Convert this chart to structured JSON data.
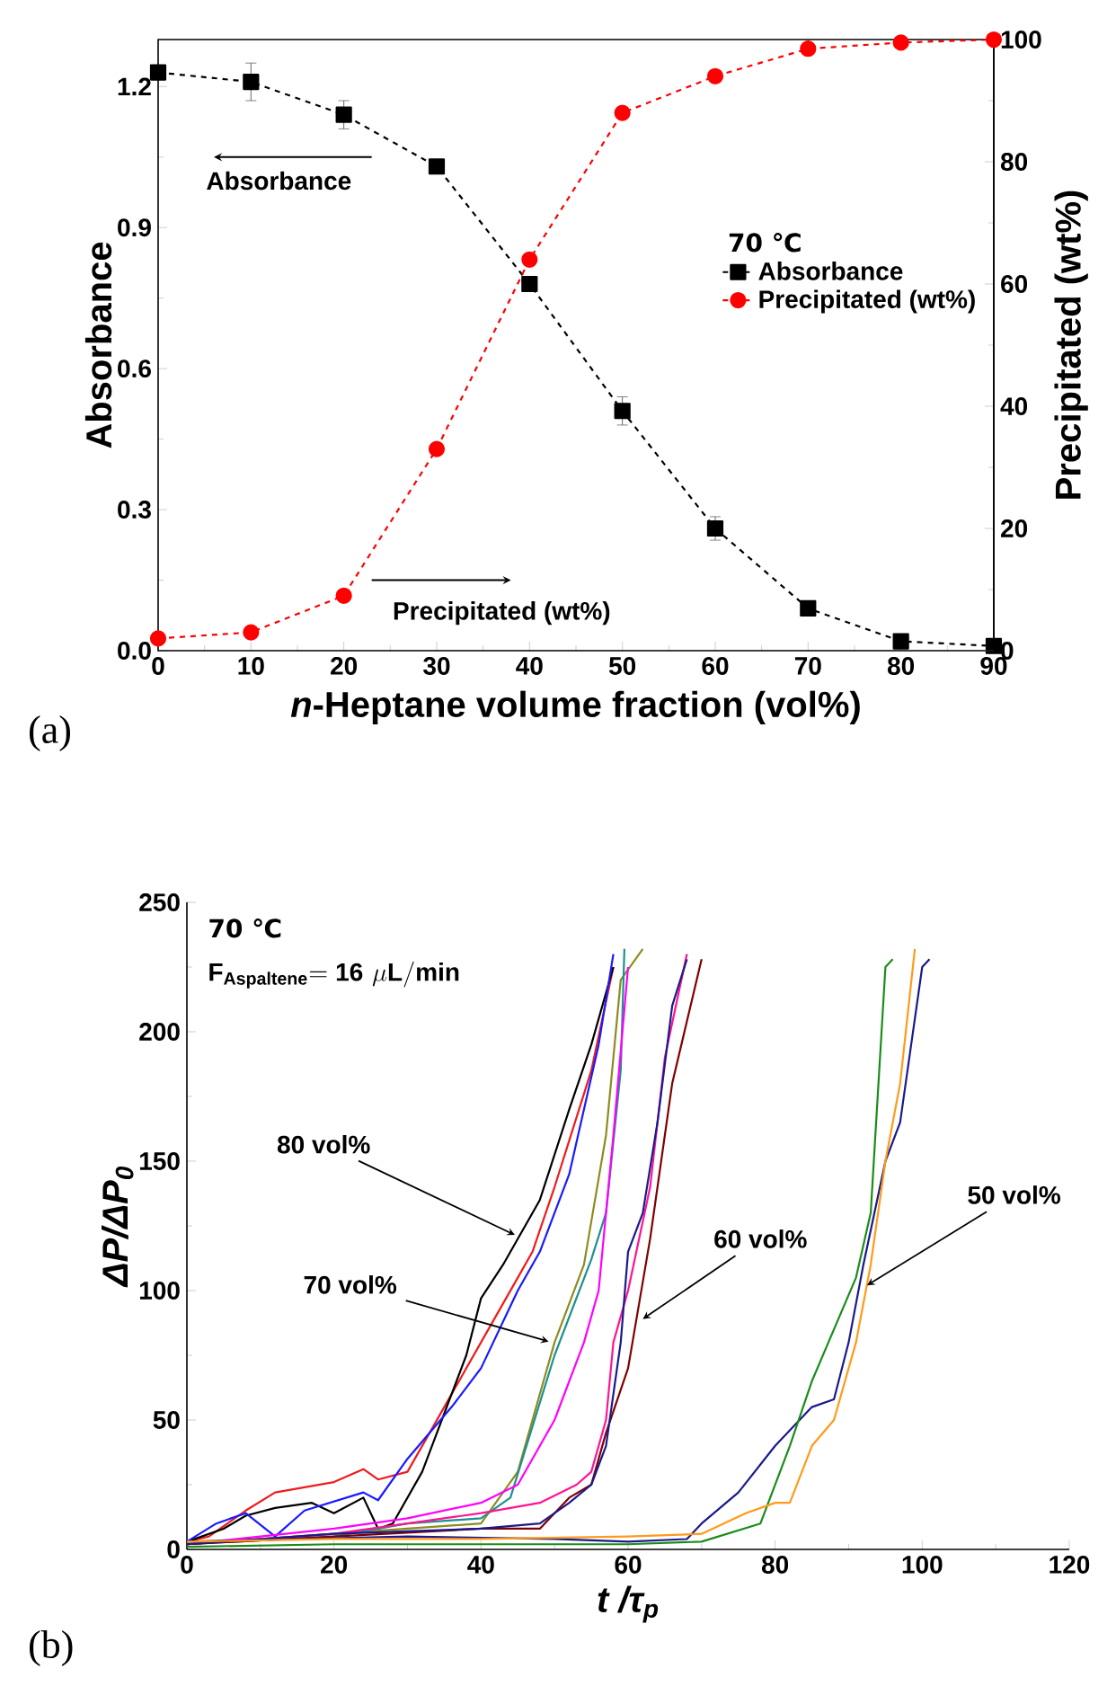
{
  "chart_data": [
    {
      "type": "line",
      "xlabel": "*n*-Heptane volume fraction (vol%)",
      "ylabel": "Absorbance",
      "y2label": "Precipitated  (wt%)",
      "legend_title": "70 ℃",
      "legend": "right",
      "line_style": "dashed",
      "x": [
        0,
        10,
        20,
        30,
        40,
        50,
        60,
        70,
        80,
        90
      ],
      "xlim": [
        0,
        90
      ],
      "xticks": [
        0,
        10,
        20,
        30,
        40,
        50,
        60,
        70,
        80,
        90
      ],
      "ylim": [
        0,
        1.3
      ],
      "yticks": [
        {
          "value": 0,
          "label": "0.0"
        },
        0.3,
        0.6,
        0.9,
        1.2
      ],
      "y2lim": [
        0,
        100
      ],
      "y2ticks": [
        0,
        20,
        40,
        60,
        80,
        100
      ],
      "annotations": [
        "(a)",
        "Absorbance",
        "Precipitated (wt%)"
      ],
      "series": [
        {
          "name": "Absorbance",
          "color": "#000000",
          "marker": "square",
          "values": [
            1.23,
            1.21,
            1.14,
            1.03,
            0.78,
            0.51,
            0.26,
            0.09,
            0.02,
            0.01
          ],
          "errors": [
            0.01,
            0.04,
            0.03,
            0.01,
            0.01,
            0.03,
            0.025,
            0.01,
            0.01,
            0.005
          ]
        },
        {
          "name": "Precipitated (wt%)",
          "color": "#ff0000",
          "marker": "circle",
          "axis": "y2",
          "values": [
            2,
            3,
            9,
            33,
            64,
            88,
            94,
            98.5,
            99.5,
            100
          ]
        }
      ]
    },
    {
      "type": "line",
      "xlabel": "t /τ$_{p}$",
      "ylabel": "ΔP/ΔP$_{0}$",
      "xlim": [
        0,
        120
      ],
      "xticks": [
        0,
        20,
        40,
        60,
        80,
        100,
        120
      ],
      "ylim": [
        0,
        250
      ],
      "yticks": [
        0,
        50,
        100,
        150,
        200,
        250
      ],
      "annotations": [
        "(b)",
        "70 ℃",
        "\\mathbf{F}_{\\mathbf{Aspaltene}}\\mathbf{=16}\\ \\mu\\mathbf{L/min}",
        {
          "text": "80 vol%",
          "x": 44.6,
          "y": 121.5
        },
        {
          "text": "70 vol%",
          "x": 49.2,
          "y": 80.3
        },
        {
          "text": "60 vol%",
          "x": 62,
          "y": 89
        },
        {
          "text": "50 vol%",
          "x": 92.5,
          "y": 102
        }
      ],
      "series": [
        {
          "color": "#ee1c1c",
          "x": [
            0,
            3,
            8,
            12,
            20,
            24,
            26,
            30,
            35,
            40,
            45,
            47,
            50,
            55,
            58
          ],
          "values": [
            3,
            5,
            15,
            22,
            26,
            31,
            27,
            30,
            55,
            80,
            105,
            115,
            140,
            185,
            225
          ]
        },
        {
          "color": "#000000",
          "x": [
            0,
            5,
            8,
            12,
            17,
            20,
            24,
            26,
            28,
            32,
            38,
            40,
            43,
            48,
            52,
            55,
            58
          ],
          "values": [
            3,
            8,
            13,
            16,
            18,
            14,
            20,
            8,
            10,
            30,
            75,
            97,
            110,
            135,
            170,
            195,
            225
          ]
        },
        {
          "color": "#1a1aff",
          "x": [
            0,
            4,
            8,
            12,
            16,
            24,
            26,
            30,
            36,
            40,
            45,
            48,
            52,
            56,
            58
          ],
          "values": [
            3,
            10,
            14,
            5,
            15,
            22,
            19,
            35,
            55,
            70,
            100,
            115,
            145,
            195,
            230
          ]
        },
        {
          "color": "#8c8c1e",
          "x": [
            0,
            10,
            20,
            30,
            40,
            45,
            50,
            54,
            57,
            59,
            62
          ],
          "values": [
            2,
            4,
            6,
            8,
            10,
            30,
            80,
            110,
            160,
            220,
            232
          ]
        },
        {
          "color": "#1e9090",
          "x": [
            0,
            20,
            30,
            40,
            44,
            50,
            55,
            57,
            59,
            59.5
          ],
          "values": [
            2,
            5,
            10,
            12,
            20,
            75,
            112,
            130,
            185,
            232
          ]
        },
        {
          "color": "#ff00ff",
          "x": [
            0,
            10,
            20,
            30,
            40,
            45,
            50,
            54,
            56,
            58,
            60
          ],
          "values": [
            2,
            5,
            8,
            12,
            18,
            25,
            50,
            80,
            100,
            160,
            225
          ]
        },
        {
          "color": "#ff1493",
          "x": [
            0,
            20,
            30,
            40,
            48,
            53,
            55,
            57,
            58,
            60,
            63,
            65,
            68
          ],
          "values": [
            2,
            6,
            10,
            14,
            18,
            25,
            30,
            50,
            80,
            100,
            140,
            190,
            230
          ]
        },
        {
          "color": "#800000",
          "x": [
            0,
            20,
            40,
            48,
            52,
            55,
            57,
            60,
            63,
            66,
            70
          ],
          "values": [
            2,
            5,
            8,
            8,
            20,
            25,
            45,
            70,
            120,
            180,
            228
          ]
        },
        {
          "color": "#1a1a8c",
          "x": [
            0,
            20,
            40,
            48,
            52,
            55,
            57,
            59,
            60,
            62,
            64,
            66,
            68
          ],
          "values": [
            2,
            6,
            8,
            10,
            18,
            25,
            40,
            80,
            115,
            130,
            165,
            210,
            228
          ]
        },
        {
          "color": "#1a1a8c",
          "x": [
            0,
            30,
            50,
            60,
            68,
            70,
            75,
            80,
            85,
            88,
            90,
            92,
            95,
            97,
            100,
            101
          ],
          "values": [
            3,
            5,
            4,
            3,
            4,
            10,
            22,
            40,
            55,
            58,
            80,
            110,
            150,
            165,
            225,
            228
          ]
        },
        {
          "color": "#1a8c1a",
          "x": [
            0,
            20,
            40,
            60,
            70,
            78,
            82,
            85,
            88,
            91,
            93,
            95,
            96
          ],
          "values": [
            1,
            2,
            2,
            2,
            3,
            10,
            40,
            65,
            85,
            105,
            130,
            225,
            228
          ]
        },
        {
          "color": "#ff9a1a",
          "x": [
            0,
            20,
            40,
            60,
            70,
            76,
            80,
            82,
            85,
            88,
            91,
            93,
            95,
            97,
            99
          ],
          "values": [
            3,
            4,
            4,
            5,
            6,
            14,
            18,
            18,
            40,
            50,
            80,
            110,
            150,
            180,
            232
          ]
        }
      ]
    }
  ]
}
